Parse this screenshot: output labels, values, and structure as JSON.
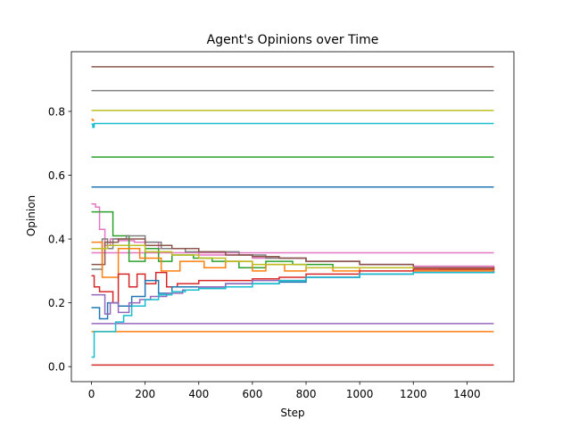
{
  "chart_data": {
    "type": "line",
    "title": "Agent's Opinions over Time",
    "xlabel": "Step",
    "ylabel": "Opinion",
    "xlim": [
      -75,
      1575
    ],
    "ylim": [
      -0.047,
      0.987
    ],
    "xticks": [
      0,
      200,
      400,
      600,
      800,
      1000,
      1200,
      1400
    ],
    "yticks": [
      0.0,
      0.2,
      0.4,
      0.6,
      0.8
    ],
    "grid": false,
    "legend": "none",
    "series": [
      {
        "color": "#8c564b",
        "x": [
          0,
          1500
        ],
        "y": [
          0.94,
          0.94
        ]
      },
      {
        "color": "#7f7f7f",
        "x": [
          0,
          1500
        ],
        "y": [
          0.865,
          0.865
        ]
      },
      {
        "color": "#bcbd22",
        "x": [
          0,
          1500
        ],
        "y": [
          0.803,
          0.803
        ]
      },
      {
        "color": "#17becf",
        "x": [
          0,
          5,
          10,
          1500
        ],
        "y": [
          0.76,
          0.75,
          0.762,
          0.762
        ]
      },
      {
        "color": "#ff7f0e",
        "x": [
          0,
          4,
          8
        ],
        "y": [
          0.775,
          0.772,
          0.77
        ]
      },
      {
        "color": "#2ca02c",
        "x": [
          0,
          1500
        ],
        "y": [
          0.657,
          0.657
        ]
      },
      {
        "color": "#1f77b4",
        "x": [
          0,
          1500
        ],
        "y": [
          0.563,
          0.563
        ]
      },
      {
        "color": "#e377c2",
        "x": [
          0,
          1500
        ],
        "y": [
          0.357,
          0.357
        ]
      },
      {
        "color": "#9467bd",
        "x": [
          0,
          1500
        ],
        "y": [
          0.135,
          0.135
        ]
      },
      {
        "color": "#ff7f0e",
        "x": [
          0,
          1500
        ],
        "y": [
          0.11,
          0.11
        ]
      },
      {
        "color": "#d62728",
        "x": [
          0,
          1500
        ],
        "y": [
          0.005,
          0.005
        ]
      },
      {
        "color": "#e377c2",
        "x": [
          0,
          15,
          30,
          50,
          70,
          100,
          160,
          250,
          400,
          600,
          800,
          1000,
          1200,
          1500
        ],
        "y": [
          0.51,
          0.5,
          0.43,
          0.38,
          0.4,
          0.395,
          0.39,
          0.37,
          0.35,
          0.34,
          0.33,
          0.32,
          0.315,
          0.31
        ]
      },
      {
        "color": "#2ca02c",
        "x": [
          0,
          50,
          80,
          140,
          200,
          250,
          300,
          380,
          450,
          550,
          650,
          750,
          900,
          1100,
          1300,
          1500
        ],
        "y": [
          0.485,
          0.485,
          0.41,
          0.33,
          0.37,
          0.33,
          0.35,
          0.34,
          0.33,
          0.31,
          0.33,
          0.32,
          0.31,
          0.31,
          0.305,
          0.3
        ]
      },
      {
        "color": "#7f7f7f",
        "x": [
          0,
          40,
          60,
          80,
          130,
          200,
          260,
          350,
          450,
          550,
          650,
          800,
          1000,
          1200,
          1500
        ],
        "y": [
          0.305,
          0.4,
          0.37,
          0.4,
          0.41,
          0.39,
          0.37,
          0.36,
          0.36,
          0.35,
          0.34,
          0.33,
          0.32,
          0.31,
          0.305
        ]
      },
      {
        "color": "#8c564b",
        "x": [
          0,
          50,
          100,
          200,
          300,
          400,
          500,
          600,
          700,
          800,
          1000,
          1200,
          1500
        ],
        "y": [
          0.32,
          0.39,
          0.4,
          0.38,
          0.37,
          0.36,
          0.35,
          0.345,
          0.34,
          0.33,
          0.32,
          0.31,
          0.305
        ]
      },
      {
        "color": "#ff7f0e",
        "x": [
          0,
          40,
          100,
          180,
          260,
          330,
          420,
          500,
          600,
          650,
          720,
          800,
          900,
          1000,
          1200,
          1500
        ],
        "y": [
          0.39,
          0.28,
          0.37,
          0.34,
          0.3,
          0.33,
          0.31,
          0.33,
          0.3,
          0.32,
          0.3,
          0.31,
          0.3,
          0.31,
          0.3,
          0.3
        ]
      },
      {
        "color": "#bcbd22",
        "x": [
          0,
          60,
          120,
          200,
          300,
          400,
          500,
          600,
          700,
          800,
          1000,
          1200,
          1500
        ],
        "y": [
          0.37,
          0.38,
          0.38,
          0.36,
          0.35,
          0.34,
          0.33,
          0.32,
          0.32,
          0.31,
          0.31,
          0.305,
          0.3
        ]
      },
      {
        "color": "#d62728",
        "x": [
          0,
          10,
          30,
          80,
          100,
          140,
          170,
          200,
          240,
          280,
          320,
          400,
          500,
          600,
          700,
          800,
          1000,
          1200,
          1500
        ],
        "y": [
          0.285,
          0.25,
          0.235,
          0.2,
          0.29,
          0.25,
          0.29,
          0.26,
          0.295,
          0.25,
          0.26,
          0.27,
          0.27,
          0.275,
          0.28,
          0.29,
          0.3,
          0.305,
          0.31
        ]
      },
      {
        "color": "#1f77b4",
        "x": [
          0,
          30,
          60,
          100,
          150,
          200,
          250,
          300,
          350,
          400,
          500,
          600,
          700,
          800,
          1000,
          1200,
          1500
        ],
        "y": [
          0.185,
          0.15,
          0.2,
          0.19,
          0.22,
          0.27,
          0.23,
          0.25,
          0.25,
          0.245,
          0.26,
          0.26,
          0.265,
          0.28,
          0.29,
          0.295,
          0.3
        ]
      },
      {
        "color": "#9467bd",
        "x": [
          0,
          50,
          70,
          100,
          140,
          180,
          220,
          280,
          340,
          400,
          500,
          600,
          800,
          1000,
          1200,
          1500
        ],
        "y": [
          0.225,
          0.165,
          0.2,
          0.17,
          0.2,
          0.21,
          0.22,
          0.23,
          0.24,
          0.25,
          0.26,
          0.27,
          0.28,
          0.29,
          0.295,
          0.3
        ]
      },
      {
        "color": "#17becf",
        "x": [
          0,
          10,
          20,
          70,
          90,
          120,
          150,
          200,
          250,
          300,
          350,
          400,
          500,
          600,
          700,
          800,
          1000,
          1200,
          1500
        ],
        "y": [
          0.03,
          0.11,
          0.11,
          0.11,
          0.14,
          0.16,
          0.19,
          0.21,
          0.225,
          0.235,
          0.24,
          0.245,
          0.25,
          0.26,
          0.27,
          0.28,
          0.29,
          0.295,
          0.298
        ]
      }
    ]
  }
}
